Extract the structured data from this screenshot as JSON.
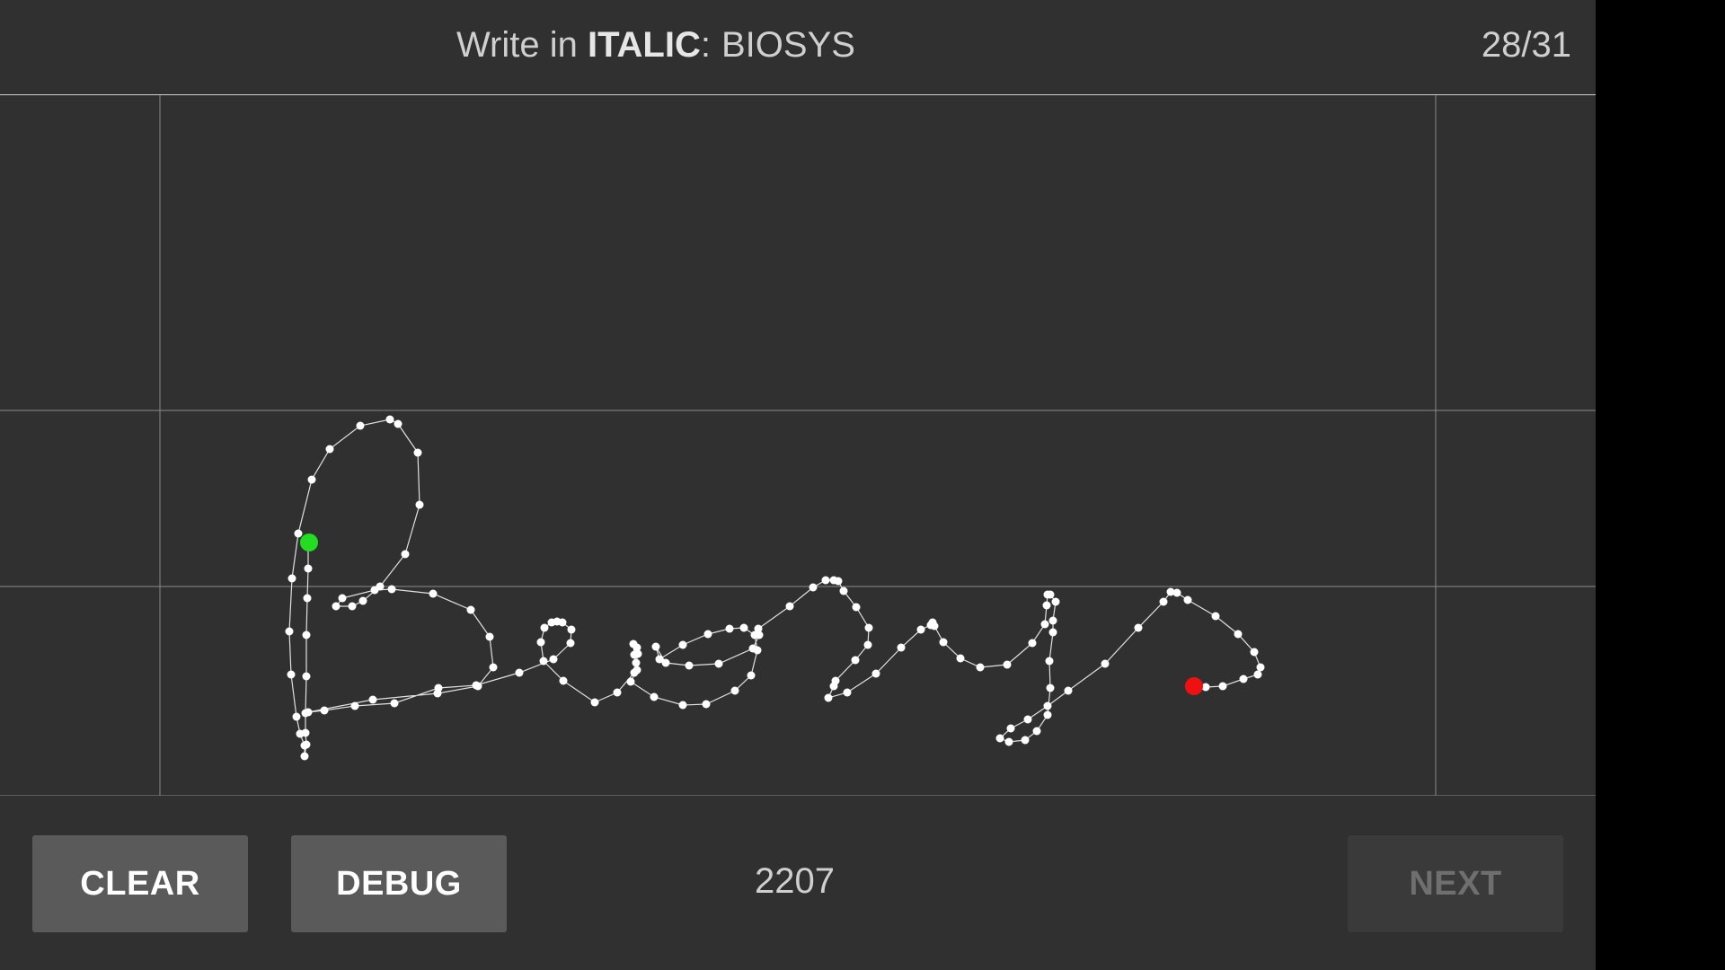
{
  "header": {
    "prompt_prefix": "Write in",
    "prompt_mode": "ITALIC",
    "prompt_colon": ":",
    "prompt_word": "BIOSYS",
    "progress": "28/31"
  },
  "canvas": {
    "stroke_color": "#e0e0e0",
    "point_color": "#ffffff",
    "start_marker_color": "#22dd22",
    "end_marker_color": "#ee1111",
    "guide_color": "#8a8a8a"
  },
  "footer": {
    "clear_label": "CLEAR",
    "debug_label": "DEBUG",
    "score": "2207",
    "next_label": "NEXT"
  }
}
